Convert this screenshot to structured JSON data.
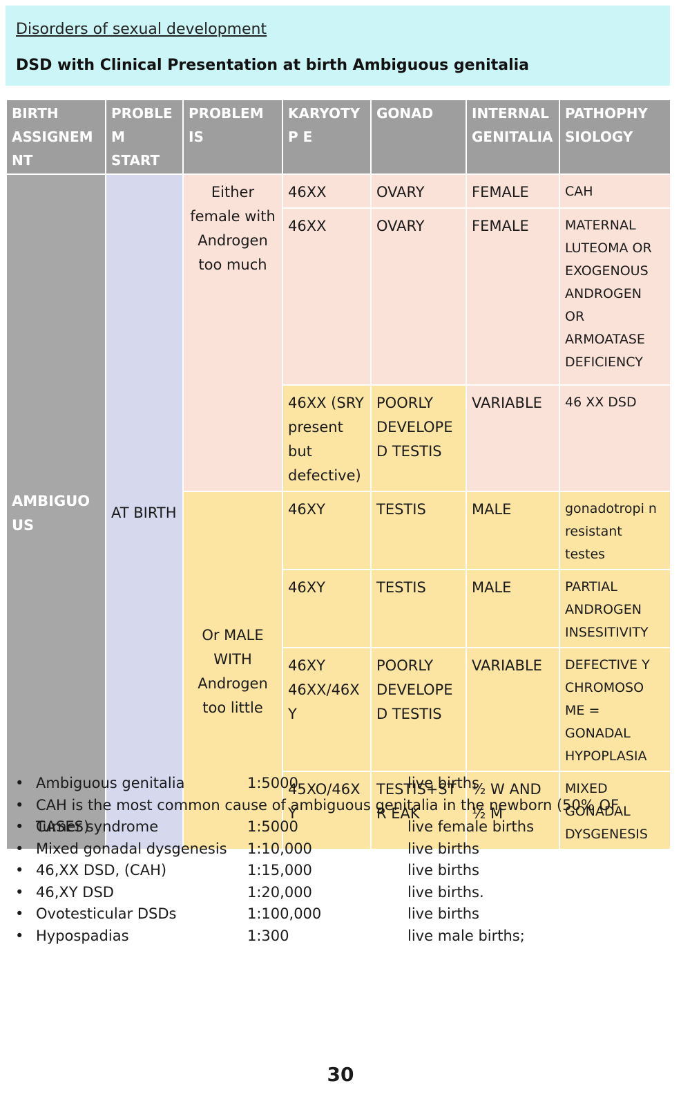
{
  "header": {
    "subtitle": "Disorders of sexual development",
    "title": "DSD with Clinical Presentation at birth Ambiguous genitalia"
  },
  "table": {
    "headers": [
      "BIRTH ASSIGNEMNT",
      "PROBLEM START",
      "PROBLEM IS",
      "KARYOTYP E",
      "GONAD",
      "INTERNAL GENITALIA",
      "PATHOPHY SIOLOGY"
    ],
    "birth_assignment": "AMBIGUOUS",
    "problem_start": "AT BIRTH",
    "problem_female": "Either female with Androgen too much",
    "problem_male": "Or MALE WITH Androgen too little",
    "rows": [
      {
        "karyotype": "46XX",
        "gonad": "OVARY",
        "internal": "FEMALE",
        "patho": "CAH"
      },
      {
        "karyotype": "46XX",
        "gonad": "OVARY",
        "internal": "FEMALE",
        "patho": "MATERNAL LUTEOMA OR EXOGENOUS ANDROGEN OR ARMOATASE DEFICIENCY"
      },
      {
        "karyotype": "46XX (SRY present but defective)",
        "gonad": "POORLY DEVELOPED TESTIS",
        "internal": "VARIABLE",
        "patho": "46 XX DSD"
      },
      {
        "karyotype": "46XY",
        "gonad": "TESTIS",
        "internal": "MALE",
        "patho": "gonadotropi n resistant testes"
      },
      {
        "karyotype": "46XY",
        "gonad": "TESTIS",
        "internal": "MALE",
        "patho": "PARTIAL ANDROGEN INSESITIVITY"
      },
      {
        "karyotype": "46XY 46XX/46XY",
        "gonad": "POORLY DEVELOPED TESTIS",
        "internal": "VARIABLE",
        "patho": "DEFECTIVE Y CHROMOSO ME = GONADAL HYPOPLASIA"
      },
      {
        "karyotype": "45XO/46XY",
        "gonad": "TESTIS+STR EAK",
        "internal": "½ W AND ½ M",
        "patho": "MIXED GONADAL DYSGENESIS"
      }
    ]
  },
  "stats": [
    {
      "label": "Ambiguous genitalia",
      "ratio": "1:5000",
      "unit": "live births"
    },
    {
      "label": "CAH is the most common cause of ambiguous genitalia in the newborn (50% OF CASES)",
      "ratio": "",
      "unit": ""
    },
    {
      "label": "Turner syndrome",
      "ratio": "1:5000",
      "unit": "live female births"
    },
    {
      "label": "Mixed gonadal dysgenesis",
      "ratio": "1:10,000",
      "unit": "live births"
    },
    {
      "label": "46,XX DSD, (CAH)",
      "ratio": "1:15,000",
      "unit": "live births"
    },
    {
      "label": "46,XY DSD",
      "ratio": "1:20,000",
      "unit": "live births."
    },
    {
      "label": "Ovotesticular DSDs",
      "ratio": "1:100,000",
      "unit": "live births"
    },
    {
      "label": "Hypospadias",
      "ratio": "1:300",
      "unit": "live male births;"
    }
  ],
  "page_number": "30"
}
